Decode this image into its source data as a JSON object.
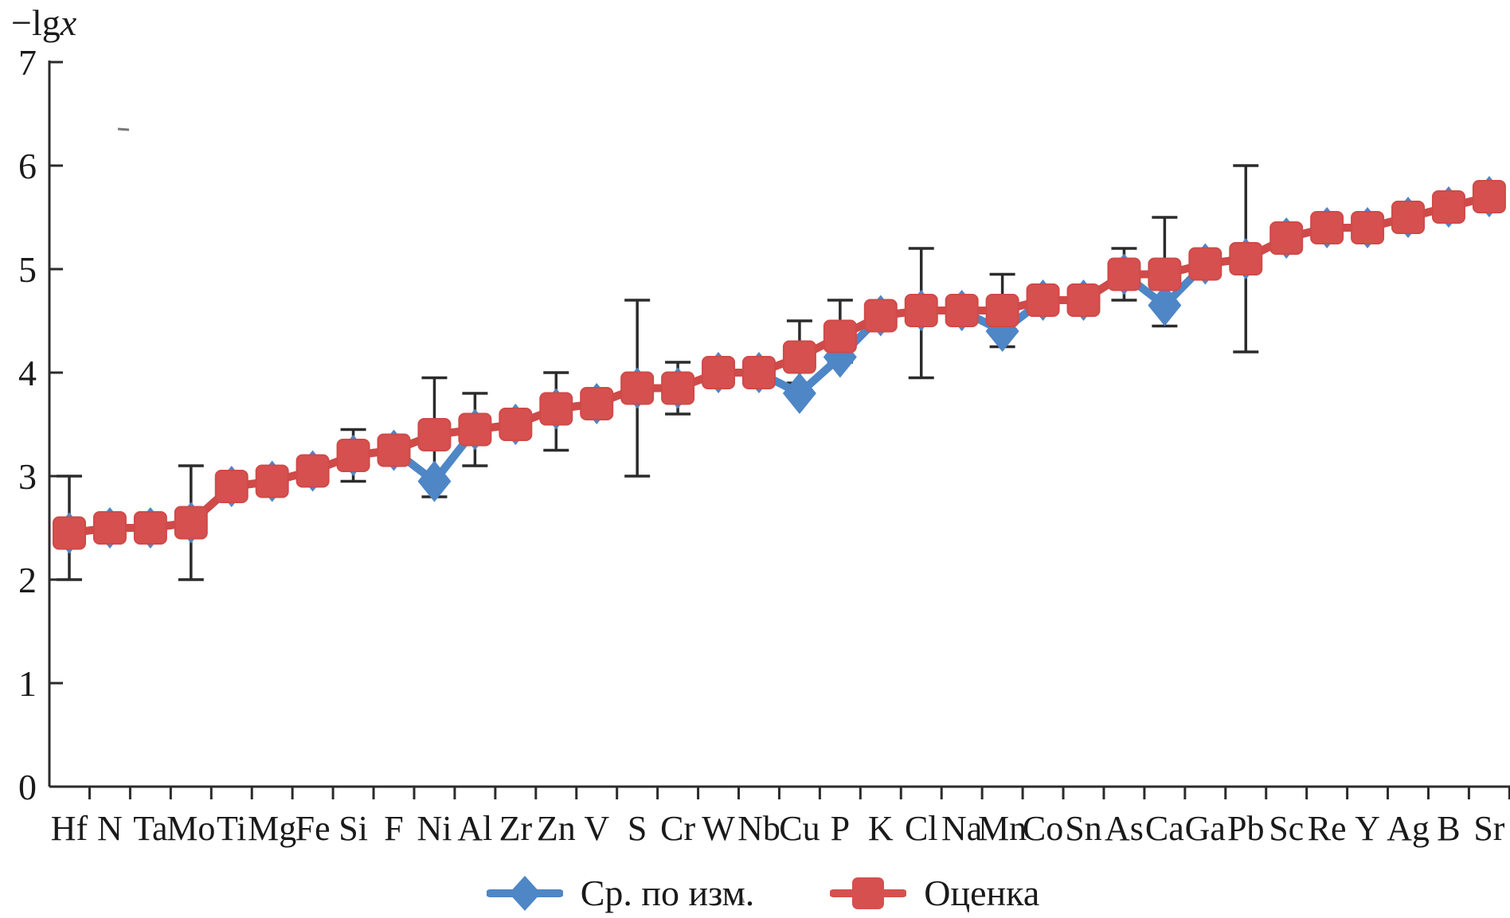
{
  "figure": {
    "background": "#ffffff",
    "y_axis_title_prefix": "−lg",
    "y_axis_title_variable": "x"
  },
  "colors": {
    "measured_blue": "#4e86c6",
    "estimate_red": "#d5504e",
    "estimate_red_line": "#cf4a48",
    "error_bar": "#2b2b2b",
    "axis": "#2b2b2b",
    "text": "#1a1a1a"
  },
  "chart_data": {
    "type": "line",
    "title": "",
    "xlabel": "",
    "ylabel": "−lgx",
    "ylim": [
      0,
      7
    ],
    "yticks": [
      0,
      1,
      2,
      3,
      4,
      5,
      6,
      7
    ],
    "grid": false,
    "legend_position": "bottom",
    "categories": [
      "Hf",
      "N",
      "Ta",
      "Mo",
      "Ti",
      "Mg",
      "Fe",
      "Si",
      "F",
      "Ni",
      "Al",
      "Zr",
      "Zn",
      "V",
      "S",
      "Cr",
      "W",
      "Nb",
      "Cu",
      "P",
      "K",
      "Cl",
      "Na",
      "Mn",
      "Co",
      "Sn",
      "As",
      "Ca",
      "Ga",
      "Pb",
      "Sc",
      "Re",
      "Y",
      "Ag",
      "B",
      "Sr"
    ],
    "series": [
      {
        "name": "Ср. по изм.",
        "marker": "diamond",
        "color": "#4e86c6",
        "values": [
          2.45,
          2.5,
          2.5,
          2.55,
          2.9,
          2.95,
          3.05,
          3.2,
          3.25,
          2.95,
          3.45,
          3.5,
          3.65,
          3.7,
          3.85,
          3.85,
          4.0,
          4.0,
          3.8,
          4.15,
          4.55,
          4.6,
          4.6,
          4.4,
          4.7,
          4.7,
          4.95,
          4.65,
          5.05,
          5.1,
          5.3,
          5.4,
          5.4,
          5.5,
          5.6,
          5.7
        ]
      },
      {
        "name": "Оценка",
        "marker": "square",
        "color": "#d5504e",
        "values": [
          2.45,
          2.5,
          2.5,
          2.55,
          2.9,
          2.95,
          3.05,
          3.2,
          3.25,
          3.4,
          3.45,
          3.5,
          3.65,
          3.7,
          3.85,
          3.85,
          4.0,
          4.0,
          4.15,
          4.35,
          4.55,
          4.6,
          4.6,
          4.6,
          4.7,
          4.7,
          4.95,
          4.95,
          5.05,
          5.1,
          5.3,
          5.4,
          5.4,
          5.5,
          5.6,
          5.7
        ]
      }
    ],
    "error_bars": [
      {
        "category": "Hf",
        "low": 2.0,
        "high": 3.0
      },
      {
        "category": "Mo",
        "low": 2.0,
        "high": 3.1
      },
      {
        "category": "Si",
        "low": 2.95,
        "high": 3.45
      },
      {
        "category": "Ni",
        "low": 2.8,
        "high": 3.95
      },
      {
        "category": "Al",
        "low": 3.1,
        "high": 3.8
      },
      {
        "category": "Zn",
        "low": 3.25,
        "high": 4.0
      },
      {
        "category": "S",
        "low": 3.0,
        "high": 4.7
      },
      {
        "category": "Cr",
        "low": 3.6,
        "high": 4.1
      },
      {
        "category": "Cu",
        "low": 3.9,
        "high": 4.5
      },
      {
        "category": "P",
        "low": 4.1,
        "high": 4.7
      },
      {
        "category": "Cl",
        "low": 3.95,
        "high": 5.2
      },
      {
        "category": "Mn",
        "low": 4.25,
        "high": 4.95
      },
      {
        "category": "As",
        "low": 4.7,
        "high": 5.2
      },
      {
        "category": "Ca",
        "low": 4.45,
        "high": 5.5
      },
      {
        "category": "Pb",
        "low": 4.2,
        "high": 6.0
      }
    ]
  }
}
